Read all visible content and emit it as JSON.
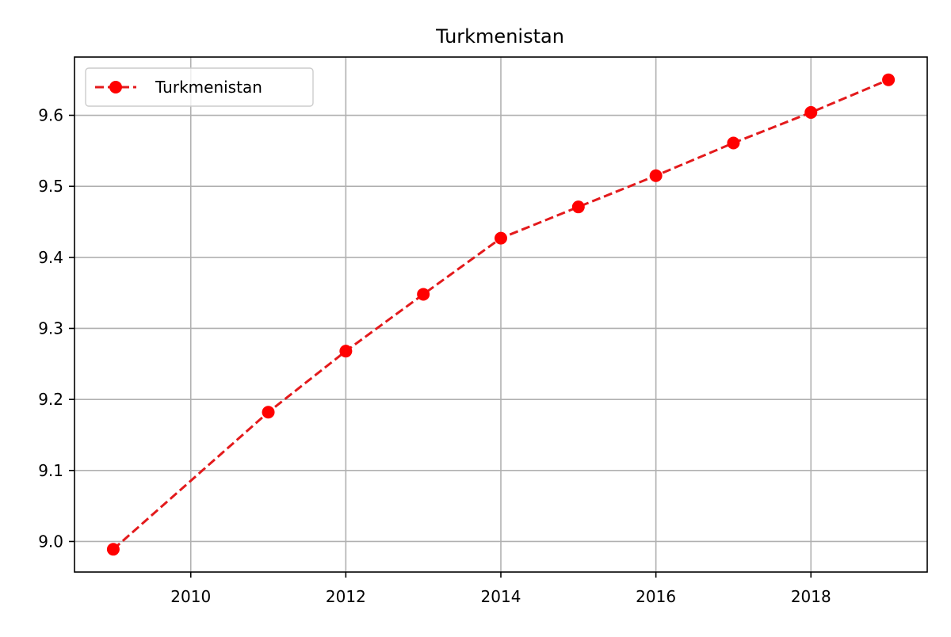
{
  "chart_data": {
    "type": "line",
    "title": "Turkmenistan",
    "xlabel": "",
    "ylabel": "",
    "x": [
      2009,
      2011,
      2012,
      2013,
      2014,
      2015,
      2016,
      2017,
      2018,
      2019
    ],
    "series": [
      {
        "name": "Turkmenistan",
        "values": [
          8.989,
          9.182,
          9.268,
          9.348,
          9.427,
          9.471,
          9.515,
          9.561,
          9.604,
          9.65
        ],
        "color": "#ff0000",
        "line_color": "#e31a1c",
        "line_style": "dashed",
        "marker": "circle"
      }
    ],
    "xlim": [
      2008.5,
      2019.5
    ],
    "ylim": [
      8.957,
      9.682
    ],
    "xticks": [
      2010,
      2012,
      2014,
      2016,
      2018
    ],
    "yticks": [
      9.0,
      9.1,
      9.2,
      9.3,
      9.4,
      9.5,
      9.6
    ],
    "grid": true,
    "legend_position": "top-left"
  }
}
